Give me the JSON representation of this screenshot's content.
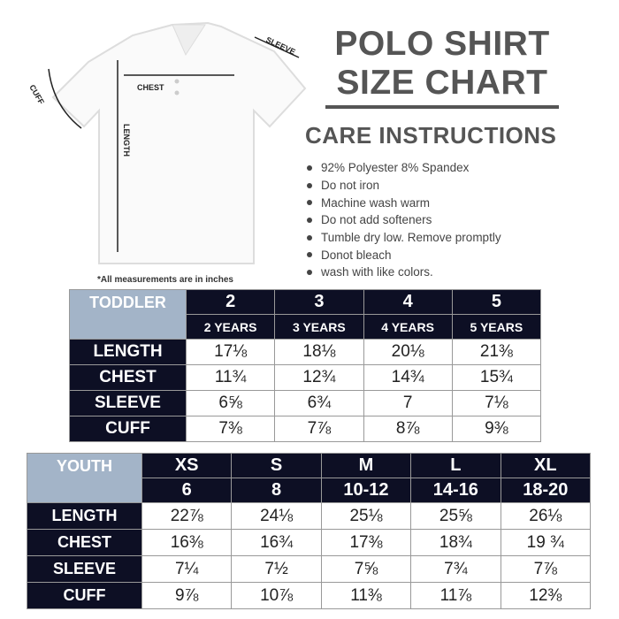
{
  "header": {
    "title_line1": "POLO SHIRT",
    "title_line2": "SIZE CHART"
  },
  "care": {
    "heading": "CARE INSTRUCTIONS",
    "items": [
      "92% Polyester 8% Spandex",
      "Do not iron",
      "Machine wash warm",
      "Do not add softeners",
      "Tumble dry low. Remove promptly",
      "Donot bleach",
      "wash with like colors."
    ]
  },
  "diagram": {
    "labels": {
      "chest": "CHEST",
      "sleeve": "SLEEVE",
      "cuff": "CUFF",
      "length": "LENGTH"
    }
  },
  "note": "*All measurements are in inches",
  "toddler": {
    "label": "TODDLER",
    "sizes": [
      "2",
      "3",
      "4",
      "5"
    ],
    "ages": [
      "2 YEARS",
      "3 YEARS",
      "4 YEARS",
      "5 YEARS"
    ],
    "rows": [
      {
        "name": "LENGTH",
        "values": [
          "17⅛",
          "18⅛",
          "20⅛",
          "21⅜"
        ]
      },
      {
        "name": "CHEST",
        "values": [
          "11¾",
          "12¾",
          "14¾",
          "15¾"
        ]
      },
      {
        "name": "SLEEVE",
        "values": [
          "6⅝",
          "6¾",
          "7",
          "7⅛"
        ]
      },
      {
        "name": "CUFF",
        "values": [
          "7⅜",
          "7⅞",
          "8⅞",
          "9⅜"
        ]
      }
    ]
  },
  "youth": {
    "label": "YOUTH",
    "sizes": [
      "XS",
      "S",
      "M",
      "L",
      "XL"
    ],
    "ages": [
      "6",
      "8",
      "10-12",
      "14-16",
      "18-20"
    ],
    "rows": [
      {
        "name": "LENGTH",
        "values": [
          "22⅞",
          "24⅛",
          "25⅛",
          "25⅝",
          "26⅛"
        ]
      },
      {
        "name": "CHEST",
        "values": [
          "16⅜",
          "16¾",
          "17⅜",
          "18¾",
          "19 ¾"
        ]
      },
      {
        "name": "SLEEVE",
        "values": [
          "7¼",
          "7½",
          "7⅝",
          "7¾",
          "7⅞"
        ]
      },
      {
        "name": "CUFF",
        "values": [
          "9⅞",
          "10⅞",
          "11⅜",
          "11⅞",
          "12⅜"
        ]
      }
    ]
  },
  "colors": {
    "dark": "#0d0f24",
    "light": "#a3b4c8"
  }
}
